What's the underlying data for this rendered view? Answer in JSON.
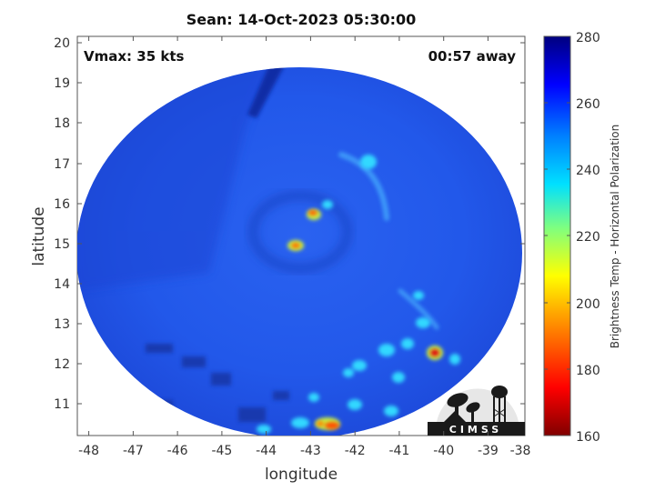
{
  "title": "Sean: 14-Oct-2023 05:30:00",
  "annotations": {
    "vmax": "Vmax: 35 kts",
    "time_away": "00:57 away"
  },
  "axes": {
    "xlabel": "longitude",
    "ylabel": "latitude",
    "xlim": [
      -48.3,
      -38
    ],
    "ylim": [
      10.2,
      20.2
    ],
    "xticks": [
      "-48",
      "-47",
      "-46",
      "-45",
      "-44",
      "-43",
      "-42",
      "-41",
      "-40",
      "-39",
      "-38"
    ],
    "yticks": [
      "20",
      "19",
      "18",
      "17",
      "16",
      "15",
      "14",
      "13",
      "12",
      "11"
    ]
  },
  "colorbar": {
    "label": "Brightness Temp - Horizontal Polarization",
    "min": 160,
    "max": 280,
    "ticks": [
      "280",
      "260",
      "240",
      "220",
      "200",
      "180",
      "160"
    ],
    "colormap": "jet"
  },
  "logo": {
    "text": "CIMSS"
  },
  "colors": {
    "background_blue": "#1f4fe0",
    "deep_blue": "#0f2aa8",
    "cold_red": "#e01010",
    "warm_cyan": "#30d8ff"
  }
}
